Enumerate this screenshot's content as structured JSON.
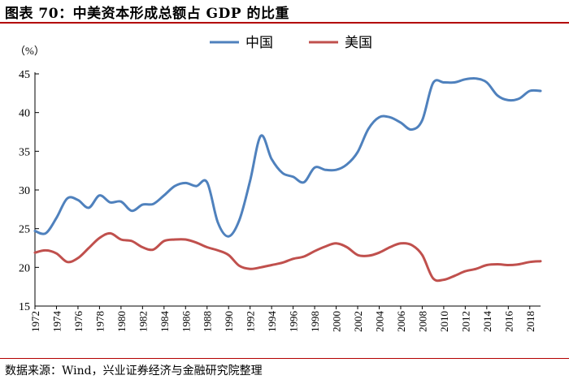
{
  "header": {
    "title": "图表 70：中美资本形成总额占 GDP 的比重"
  },
  "footer": {
    "source": "数据来源：Wind，兴业证券经济与金融研究院整理"
  },
  "colors": {
    "china": "#4f81bd",
    "usa": "#c0504d",
    "accent": "#b30000"
  },
  "chart_data": {
    "type": "line",
    "title": "",
    "ylabel": "（%）",
    "xlabel": "",
    "ylim": [
      15,
      45
    ],
    "yticks": [
      "15",
      "20",
      "25",
      "30",
      "35",
      "40",
      "45"
    ],
    "xticks": [
      "1972",
      "1974",
      "1976",
      "1978",
      "1980",
      "1982",
      "1984",
      "1986",
      "1988",
      "1990",
      "1992",
      "1994",
      "1996",
      "1998",
      "2000",
      "2002",
      "2004",
      "2006",
      "2008",
      "2010",
      "2012",
      "2014",
      "2016",
      "2018"
    ],
    "x": [
      1972,
      1973,
      1974,
      1975,
      1976,
      1977,
      1978,
      1979,
      1980,
      1981,
      1982,
      1983,
      1984,
      1985,
      1986,
      1987,
      1988,
      1989,
      1990,
      1991,
      1992,
      1993,
      1994,
      1995,
      1996,
      1997,
      1998,
      1999,
      2000,
      2001,
      2002,
      2003,
      2004,
      2005,
      2006,
      2007,
      2008,
      2009,
      2010,
      2011,
      2012,
      2013,
      2014,
      2015,
      2016,
      2017,
      2018,
      2019
    ],
    "legend": [
      "中国",
      "美国"
    ],
    "series": [
      {
        "name": "中国",
        "values": [
          24.7,
          24.4,
          26.4,
          28.9,
          28.7,
          27.7,
          29.3,
          28.4,
          28.5,
          27.3,
          28.1,
          28.2,
          29.3,
          30.5,
          30.9,
          30.5,
          31.0,
          25.8,
          24.0,
          26.1,
          31.2,
          37.0,
          34.0,
          32.2,
          31.7,
          31.0,
          32.9,
          32.6,
          32.6,
          33.3,
          34.9,
          37.9,
          39.4,
          39.4,
          38.7,
          37.8,
          39.0,
          43.8,
          43.9,
          43.9,
          44.3,
          44.4,
          43.9,
          42.2,
          41.6,
          41.8,
          42.8,
          42.8
        ]
      },
      {
        "name": "美国",
        "values": [
          21.9,
          22.2,
          21.8,
          20.7,
          21.2,
          22.5,
          23.8,
          24.4,
          23.6,
          23.4,
          22.6,
          22.3,
          23.4,
          23.6,
          23.6,
          23.2,
          22.6,
          22.2,
          21.6,
          20.2,
          19.8,
          20.0,
          20.3,
          20.6,
          21.1,
          21.4,
          22.1,
          22.7,
          23.1,
          22.6,
          21.6,
          21.5,
          21.9,
          22.6,
          23.1,
          22.9,
          21.6,
          18.6,
          18.4,
          18.9,
          19.5,
          19.8,
          20.3,
          20.4,
          20.3,
          20.4,
          20.7,
          20.8
        ]
      }
    ]
  }
}
